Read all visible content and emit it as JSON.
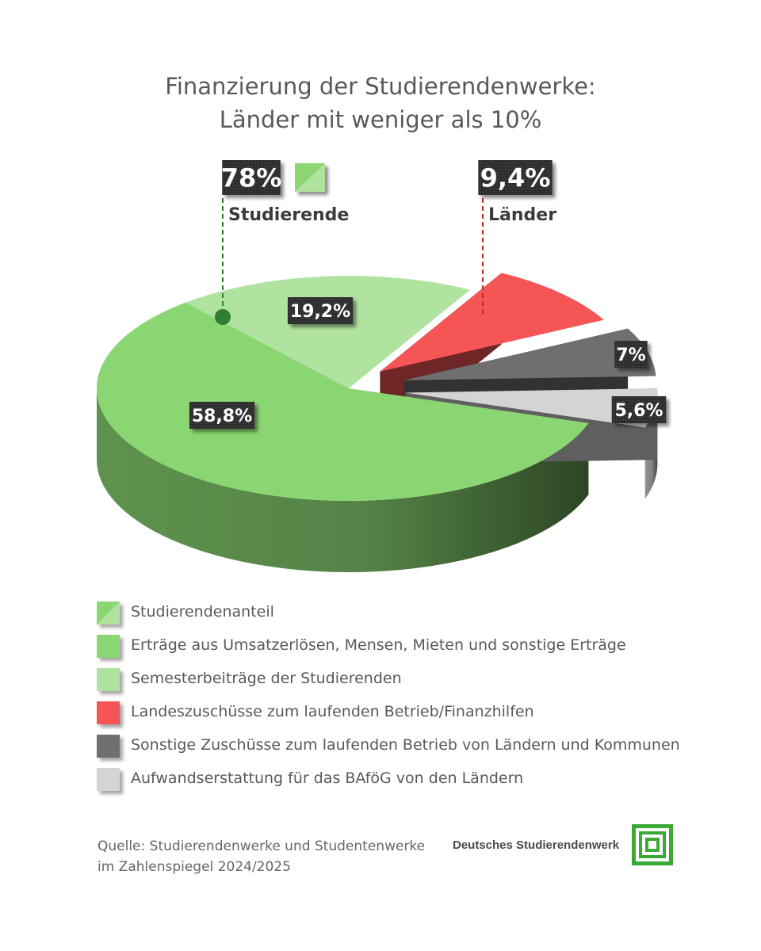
{
  "title": {
    "line1": "Finanzierung der Studierendenwerke:",
    "line2": "Länder mit weniger als 10%"
  },
  "chart_data": {
    "type": "pie",
    "title": "Finanzierung der Studierendenwerke: Länder mit weniger als 10%",
    "slices": [
      {
        "label": "Erträge aus Umsatzerlösen, Mensen, Mieten und sonstige Erträge",
        "value": 58.8,
        "value_label": "58,8%",
        "color": "#8ad672",
        "group": "Studierende"
      },
      {
        "label": "Semesterbeiträge der Studierenden",
        "value": 19.2,
        "value_label": "19,2%",
        "color": "#b1e3a0",
        "group": "Studierende"
      },
      {
        "label": "Landeszuschüsse zum laufenden Betrieb/Finanzhilfen",
        "value": 9.4,
        "value_label": "9,4%",
        "color": "#f55555",
        "group": "Länder",
        "exploded": true
      },
      {
        "label": "Sonstige Zuschüsse zum laufenden Betrieb von Ländern und Kommunen",
        "value": 7,
        "value_label": "7%",
        "color": "#6f6f6f",
        "group": "Länder",
        "exploded": true
      },
      {
        "label": "Aufwandserstattung für das BAföG von den Ländern",
        "value": 5.6,
        "value_label": "5,6%",
        "color": "#d4d4d4",
        "group": "Länder",
        "exploded": true
      }
    ],
    "callouts": [
      {
        "value_label": "78%",
        "label": "Studierende",
        "color": "#2e7d32"
      },
      {
        "value_label": "9,4%",
        "label": "Länder",
        "color": "#c62828"
      }
    ]
  },
  "legend": [
    {
      "label": "Studierendenanteil",
      "color": "#8ad672",
      "color2": "#b1e3a0"
    },
    {
      "label": "Erträge aus Umsatzerlösen, Mensen, Mieten und sonstige Erträge",
      "color": "#8ad672"
    },
    {
      "label": "Semesterbeiträge der Studierenden",
      "color": "#b1e3a0"
    },
    {
      "label": "Landeszuschüsse zum laufenden Betrieb/Finanzhilfen",
      "color": "#f55555"
    },
    {
      "label": "Sonstige Zuschüsse zum laufenden Betrieb von Ländern und Kommunen",
      "color": "#6f6f6f"
    },
    {
      "label": "Aufwandserstattung für das BAföG von den Ländern",
      "color": "#d4d4d4"
    }
  ],
  "source": {
    "line1": "Quelle: Studierendenwerke und Studentenwerke",
    "line2": "im Zahlenspiegel 2024/2025"
  },
  "brand": {
    "name": "Deutsches Studierendenwerk",
    "logo_color": "#3aaa35"
  }
}
